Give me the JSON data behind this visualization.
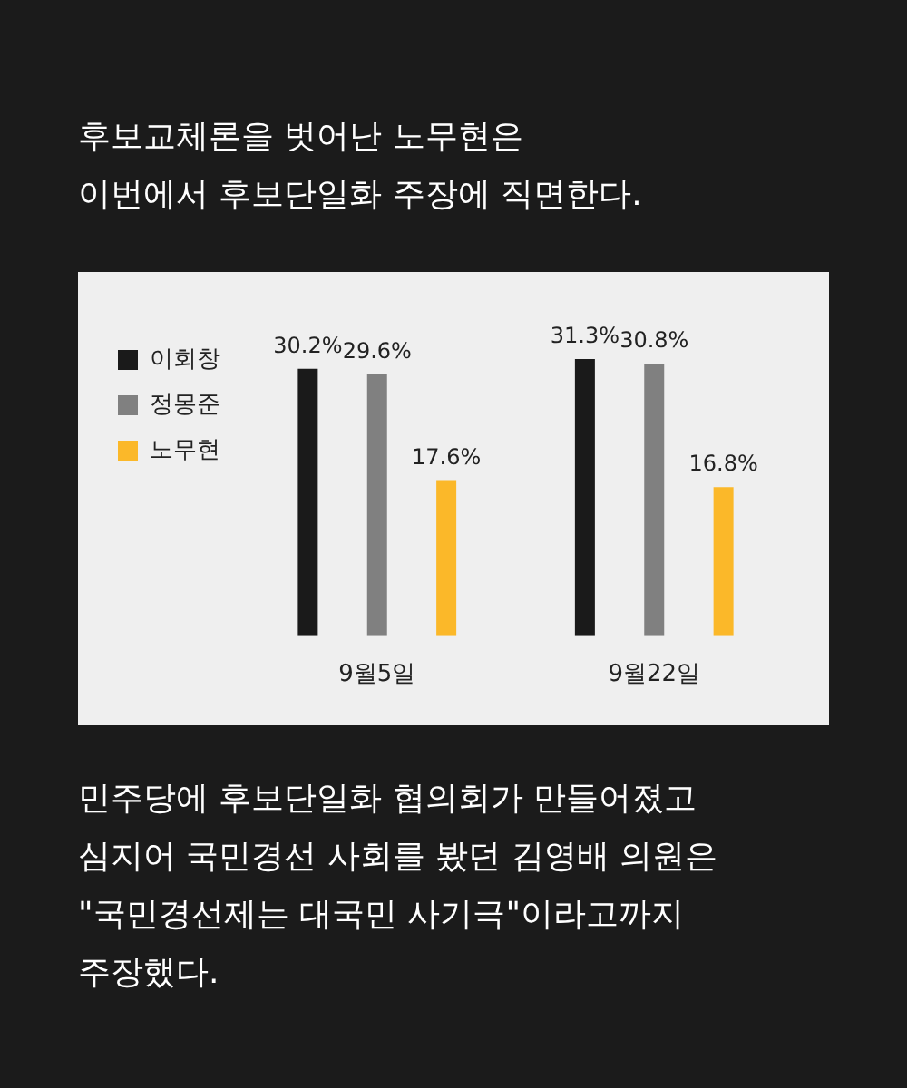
{
  "chart_data": {
    "type": "bar",
    "title": "후보교체론을 벗어난 노무현은\n이번에서 후보단일화 주장에 직면한다.",
    "categories": [
      "9월5일",
      "9월22일"
    ],
    "legend": "top left",
    "grid": false,
    "series": [
      {
        "name": "이회창",
        "color": "#1a1a1a",
        "values": [
          30.2,
          31.3
        ],
        "value_labels": [
          "30.2%",
          "31.3%"
        ]
      },
      {
        "name": "정몽준",
        "color": "#808080",
        "values": [
          29.6,
          30.8
        ],
        "value_labels": [
          "29.6%",
          "30.8%"
        ]
      },
      {
        "name": "노무현",
        "color": "#fbb829",
        "values": [
          17.6,
          16.8
        ],
        "value_labels": [
          "17.6%",
          "16.8%"
        ]
      }
    ],
    "annotations": [
      "민주당에 후보단일화 협의회가 만들어졌고\n심지어 국민경선 사회를 봤던 김영배 의원은\n\"국민경선제는 대국민 사기극\"이라고까지\n주장했다."
    ]
  }
}
